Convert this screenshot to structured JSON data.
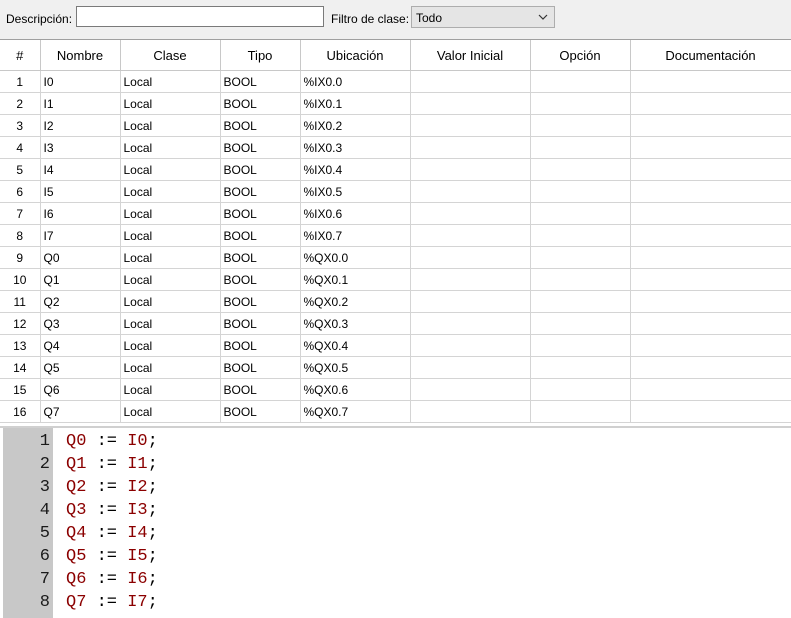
{
  "filter": {
    "description_label": "Descripción:",
    "description_value": "",
    "class_filter_label": "Filtro de clase:",
    "class_filter_value": "Todo"
  },
  "table": {
    "headers": [
      "#",
      "Nombre",
      "Clase",
      "Tipo",
      "Ubicación",
      "Valor Inicial",
      "Opción",
      "Documentación"
    ],
    "rows": [
      [
        "1",
        "I0",
        "Local",
        "BOOL",
        "%IX0.0",
        "",
        "",
        ""
      ],
      [
        "2",
        "I1",
        "Local",
        "BOOL",
        "%IX0.1",
        "",
        "",
        ""
      ],
      [
        "3",
        "I2",
        "Local",
        "BOOL",
        "%IX0.2",
        "",
        "",
        ""
      ],
      [
        "4",
        "I3",
        "Local",
        "BOOL",
        "%IX0.3",
        "",
        "",
        ""
      ],
      [
        "5",
        "I4",
        "Local",
        "BOOL",
        "%IX0.4",
        "",
        "",
        ""
      ],
      [
        "6",
        "I5",
        "Local",
        "BOOL",
        "%IX0.5",
        "",
        "",
        ""
      ],
      [
        "7",
        "I6",
        "Local",
        "BOOL",
        "%IX0.6",
        "",
        "",
        ""
      ],
      [
        "8",
        "I7",
        "Local",
        "BOOL",
        "%IX0.7",
        "",
        "",
        ""
      ],
      [
        "9",
        "Q0",
        "Local",
        "BOOL",
        "%QX0.0",
        "",
        "",
        ""
      ],
      [
        "10",
        "Q1",
        "Local",
        "BOOL",
        "%QX0.1",
        "",
        "",
        ""
      ],
      [
        "11",
        "Q2",
        "Local",
        "BOOL",
        "%QX0.2",
        "",
        "",
        ""
      ],
      [
        "12",
        "Q3",
        "Local",
        "BOOL",
        "%QX0.3",
        "",
        "",
        ""
      ],
      [
        "13",
        "Q4",
        "Local",
        "BOOL",
        "%QX0.4",
        "",
        "",
        ""
      ],
      [
        "14",
        "Q5",
        "Local",
        "BOOL",
        "%QX0.5",
        "",
        "",
        ""
      ],
      [
        "15",
        "Q6",
        "Local",
        "BOOL",
        "%QX0.6",
        "",
        "",
        ""
      ],
      [
        "16",
        "Q7",
        "Local",
        "BOOL",
        "%QX0.7",
        "",
        "",
        ""
      ]
    ]
  },
  "editor": {
    "lines": [
      {
        "n": "1",
        "lhs": "Q0",
        "op": " := ",
        "rhs": "I0",
        "end": ";"
      },
      {
        "n": "2",
        "lhs": "Q1",
        "op": " := ",
        "rhs": "I1",
        "end": ";"
      },
      {
        "n": "3",
        "lhs": "Q2",
        "op": " := ",
        "rhs": "I2",
        "end": ";"
      },
      {
        "n": "4",
        "lhs": "Q3",
        "op": " := ",
        "rhs": "I3",
        "end": ";"
      },
      {
        "n": "5",
        "lhs": "Q4",
        "op": " := ",
        "rhs": "I4",
        "end": ";"
      },
      {
        "n": "6",
        "lhs": "Q5",
        "op": " := ",
        "rhs": "I5",
        "end": ";"
      },
      {
        "n": "7",
        "lhs": "Q6",
        "op": " := ",
        "rhs": "I6",
        "end": ";"
      },
      {
        "n": "8",
        "lhs": "Q7",
        "op": " := ",
        "rhs": "I7",
        "end": ";"
      }
    ]
  },
  "icons": {
    "dropdown": "chevron-down-icon"
  }
}
